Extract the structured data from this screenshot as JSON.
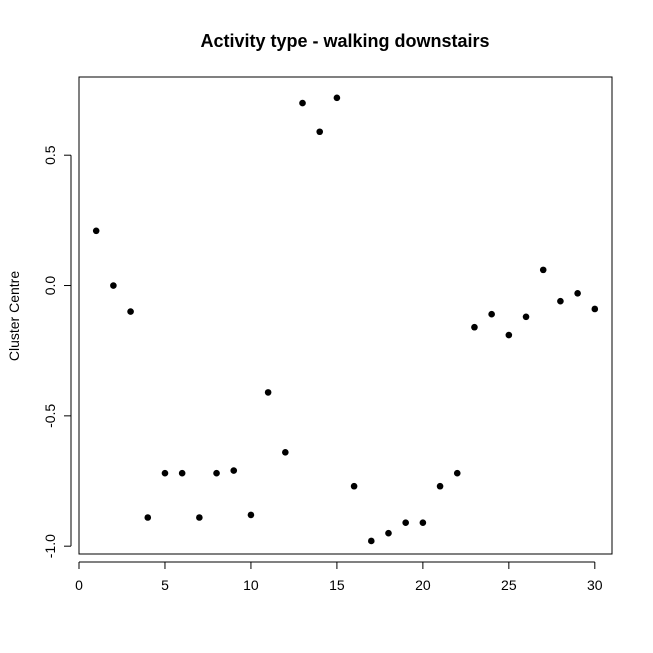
{
  "chart_data": {
    "type": "scatter",
    "title": "Activity type - walking downstairs",
    "xlabel": "",
    "ylabel": "Cluster Centre",
    "xlim": [
      0,
      31
    ],
    "ylim": [
      -1.03,
      0.8
    ],
    "xticks": [
      0,
      5,
      10,
      15,
      20,
      25,
      30
    ],
    "xtick_labels": [
      "0",
      "5",
      "10",
      "15",
      "20",
      "25",
      "30"
    ],
    "yticks": [
      -1.0,
      -0.5,
      0.0,
      0.5
    ],
    "ytick_labels": [
      "-1.0",
      "-0.5",
      "0.0",
      "0.5"
    ],
    "grid": false,
    "marker_color": "#000000",
    "x": [
      1,
      2,
      3,
      4,
      5,
      6,
      7,
      8,
      9,
      10,
      11,
      12,
      13,
      14,
      15,
      16,
      17,
      18,
      19,
      20,
      21,
      22,
      23,
      24,
      25,
      26,
      27,
      28,
      29,
      30
    ],
    "y": [
      0.21,
      0.0,
      -0.1,
      -0.89,
      -0.72,
      -0.72,
      -0.89,
      -0.72,
      -0.71,
      -0.88,
      -0.41,
      -0.64,
      0.7,
      0.59,
      0.72,
      -0.77,
      -0.98,
      -0.95,
      -0.91,
      -0.91,
      -0.77,
      -0.72,
      -0.16,
      -0.11,
      -0.19,
      -0.12,
      0.06,
      -0.06,
      -0.03,
      -0.09
    ]
  }
}
